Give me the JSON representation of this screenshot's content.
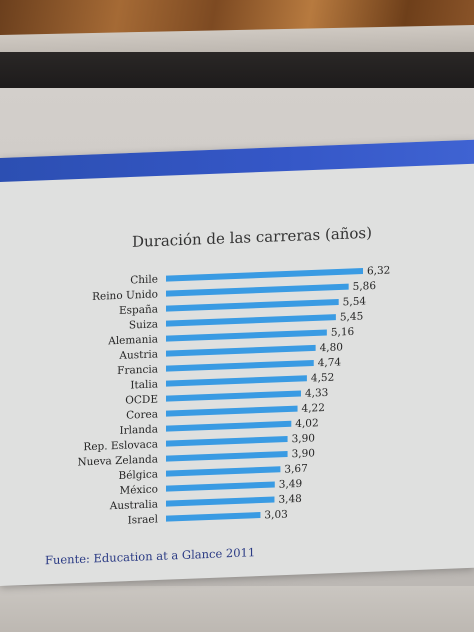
{
  "chart_data": {
    "type": "bar",
    "orientation": "horizontal",
    "title": "Duración de las carreras (años)",
    "categories": [
      "Chile",
      "Reino Unido",
      "España",
      "Suiza",
      "Alemania",
      "Austria",
      "Francia",
      "Italia",
      "OCDE",
      "Corea",
      "Irlanda",
      "Rep. Eslovaca",
      "Nueva Zelanda",
      "Bélgica",
      "México",
      "Australia",
      "Israel"
    ],
    "values": [
      6.32,
      5.86,
      5.54,
      5.45,
      5.16,
      4.8,
      4.74,
      4.52,
      4.33,
      4.22,
      4.02,
      3.9,
      3.9,
      3.67,
      3.49,
      3.48,
      3.03
    ],
    "value_labels": [
      "6,32",
      "5,86",
      "5,54",
      "5,45",
      "5,16",
      "4,80",
      "4,74",
      "4,52",
      "4,33",
      "4,22",
      "4,02",
      "3,90",
      "3,90",
      "3,67",
      "3,49",
      "3,48",
      "3,03"
    ],
    "xlim": [
      0,
      6.32
    ],
    "grid": false,
    "legend": "none",
    "bar_color": "#3a9be3",
    "source": "Fuente: Education at a Glance 2011"
  }
}
